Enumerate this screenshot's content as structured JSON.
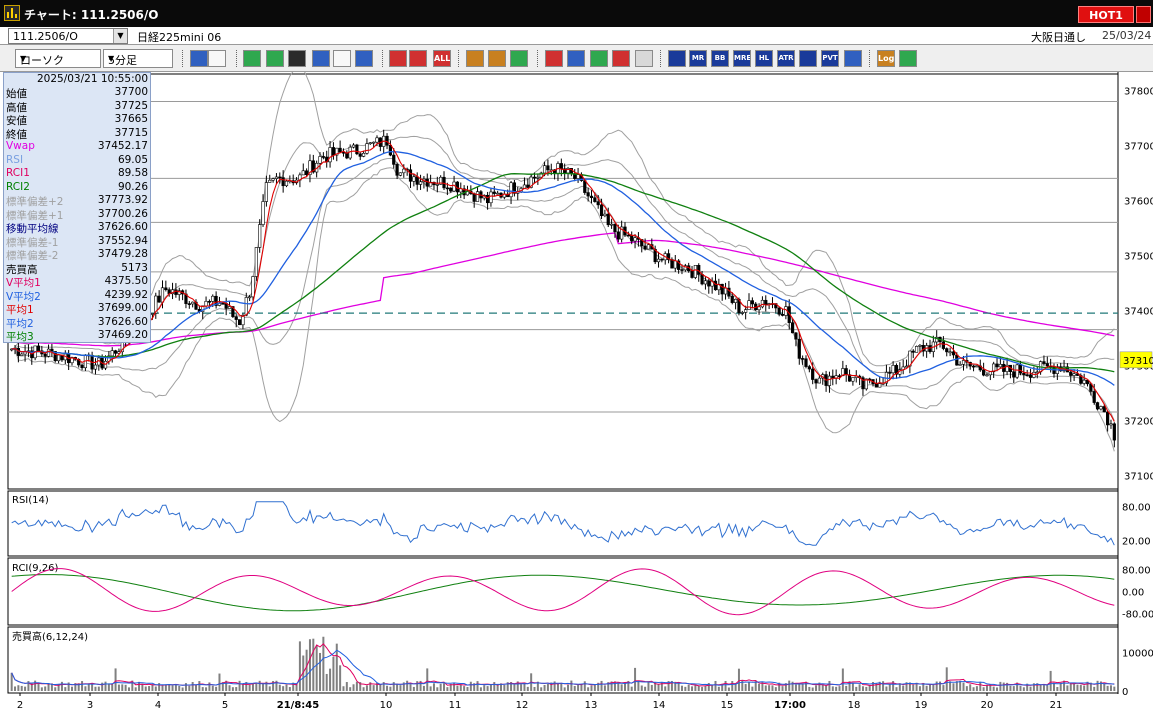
{
  "window": {
    "title": "チャート: 111.2506/O",
    "hot_badge": "HOT1"
  },
  "infobar": {
    "code": "111.2506/O",
    "instrument": "日経225mini 06",
    "market": "大阪日通し",
    "date": "25/03/24"
  },
  "toolbar": {
    "chart_type": "ローソク",
    "interval": "5分足",
    "buttons": [
      {
        "icon": "search-icon",
        "label": ""
      },
      {
        "icon": "split-icon",
        "label": ""
      },
      {
        "icon": "pencil-icon",
        "label": ""
      },
      {
        "icon": "draw-icon",
        "label": ""
      },
      {
        "icon": "cursor-icon",
        "label": ""
      },
      {
        "icon": "undo-icon",
        "label": ""
      },
      {
        "icon": "note-icon",
        "label": ""
      },
      {
        "icon": "trash-icon",
        "label": ""
      },
      {
        "icon": "width-icon",
        "label": ""
      },
      {
        "icon": "width-expand-icon",
        "label": ""
      },
      {
        "icon": "all-icon",
        "label": "ALL"
      },
      {
        "icon": "settings-icon",
        "label": ""
      },
      {
        "icon": "wrench-icon",
        "label": ""
      },
      {
        "icon": "color-icon",
        "label": ""
      },
      {
        "icon": "import-icon",
        "label": ""
      },
      {
        "icon": "zoom-icon",
        "label": ""
      },
      {
        "icon": "bar-icon",
        "label": ""
      },
      {
        "icon": "cross-icon",
        "label": ""
      },
      {
        "icon": "disabled-icon",
        "label": ""
      },
      {
        "icon": "ma-icon",
        "label": ""
      },
      {
        "icon": "mr-icon",
        "label": "MR"
      },
      {
        "icon": "bb-icon",
        "label": "BB"
      },
      {
        "icon": "mre-icon",
        "label": "MRE"
      },
      {
        "icon": "hl-icon",
        "label": "HL"
      },
      {
        "icon": "atr-icon",
        "label": "ATR"
      },
      {
        "icon": "pb-icon",
        "label": ""
      },
      {
        "icon": "pvt-icon",
        "label": "PVT"
      },
      {
        "icon": "box-icon",
        "label": ""
      },
      {
        "icon": "log-icon",
        "label": "Log"
      },
      {
        "icon": "export-icon",
        "label": ""
      }
    ]
  },
  "info_panel": {
    "datetime": "2025/03/21  10:55:00",
    "rows": [
      {
        "label": "始値",
        "value": "37700",
        "color": "#000000"
      },
      {
        "label": "高値",
        "value": "37725",
        "color": "#000000"
      },
      {
        "label": "安値",
        "value": "37665",
        "color": "#000000"
      },
      {
        "label": "終値",
        "value": "37715",
        "color": "#000000"
      },
      {
        "label": "Vwap",
        "value": "37452.17",
        "color": "#e000e0"
      },
      {
        "label": "RSI",
        "value": "69.05",
        "color": "#7aa0e0"
      },
      {
        "label": "RCI1",
        "value": "89.58",
        "color": "#e00060"
      },
      {
        "label": "RCI2",
        "value": "90.26",
        "color": "#008000"
      },
      {
        "label": "標準偏差+2",
        "value": "37773.92",
        "color": "#a0a0a0"
      },
      {
        "label": "標準偏差+1",
        "value": "37700.26",
        "color": "#a0a0a0"
      },
      {
        "label": "移動平均線",
        "value": "37626.60",
        "color": "#000080"
      },
      {
        "label": "標準偏差-1",
        "value": "37552.94",
        "color": "#a0a0a0"
      },
      {
        "label": "標準偏差-2",
        "value": "37479.28",
        "color": "#a0a0a0"
      },
      {
        "label": "売買高",
        "value": "5173",
        "color": "#000000"
      },
      {
        "label": "V平均1",
        "value": "4375.50",
        "color": "#e00060"
      },
      {
        "label": "V平均2",
        "value": "4239.92",
        "color": "#2060e0"
      },
      {
        "label": "平均1",
        "value": "37699.00",
        "color": "#e00000"
      },
      {
        "label": "平均2",
        "value": "37626.60",
        "color": "#2060e0"
      },
      {
        "label": "平均3",
        "value": "37469.20",
        "color": "#008000"
      }
    ]
  },
  "panels": {
    "price_ticks": [
      "37800",
      "37700",
      "37600",
      "37500",
      "37400",
      "37300",
      "37200",
      "37100"
    ],
    "current_price": "37310",
    "rsi_label": "RSI(14)",
    "rsi_ticks": [
      "80.00",
      "20.00"
    ],
    "rci_label": "RCI(9,26)",
    "rci_ticks": [
      "80.00",
      "0.00",
      "-80.00"
    ],
    "vol_label": "売買高(6,12,24)",
    "vol_ticks": [
      "10000",
      "0"
    ]
  },
  "x_axis": {
    "labels": [
      "2",
      "3",
      "4",
      "5",
      "21/8:45",
      "10",
      "11",
      "12",
      "13",
      "14",
      "15",
      "17:00",
      "18",
      "19",
      "20",
      "21"
    ]
  },
  "colors": {
    "candle_up": "#ffffff",
    "candle_down": "#000000",
    "ma_short": "#e00000",
    "ma_mid": "#2060e0",
    "ma_long": "#108010",
    "vwap": "#e000e0",
    "bollinger": "#a0a0a0",
    "rsi": "#3070d0",
    "rci1": "#e00080",
    "rci2": "#108010",
    "dashed_level": "#207878",
    "current_price_bg": "#ffff00"
  }
}
